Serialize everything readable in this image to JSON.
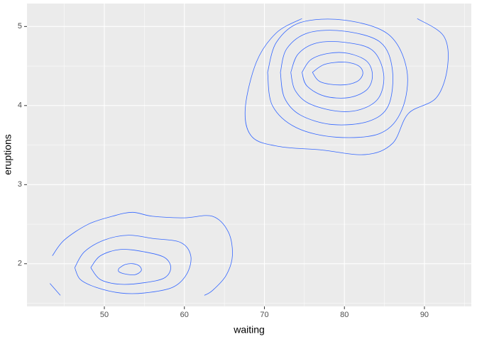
{
  "chart_data": {
    "type": "contour",
    "x_label": "waiting",
    "y_label": "eruptions",
    "color": "#3366FF",
    "xlim": [
      40.33,
      95.86
    ],
    "ylim": [
      1.46,
      5.29
    ],
    "xticks": [
      50,
      60,
      70,
      80,
      90
    ],
    "yticks": [
      2,
      3,
      4,
      5
    ],
    "grid": true,
    "series": [
      {
        "x": [
          51.8,
          52.6,
          53.6,
          54.4,
          54.6,
          53.8,
          52.6,
          51.8,
          51.8
        ],
        "y": [
          1.94,
          1.99,
          2.0,
          1.97,
          1.91,
          1.86,
          1.87,
          1.9,
          1.94
        ]
      },
      {
        "x": [
          48.3,
          49.5,
          52,
          55,
          57.5,
          58.3,
          57.5,
          55,
          52,
          49.5,
          48.3
        ],
        "y": [
          1.95,
          2.1,
          2.18,
          2.15,
          2.08,
          1.95,
          1.82,
          1.76,
          1.74,
          1.8,
          1.95
        ]
      },
      {
        "x": [
          46.3,
          47.5,
          50,
          53,
          56,
          59.5,
          60.8,
          60.3,
          58.5,
          55,
          52,
          49,
          47,
          46.3
        ],
        "y": [
          1.95,
          2.15,
          2.3,
          2.36,
          2.32,
          2.27,
          2.1,
          1.87,
          1.7,
          1.63,
          1.63,
          1.7,
          1.8,
          1.95
        ]
      },
      {
        "x": [
          43.5,
          45,
          48,
          51,
          53.5,
          56,
          60,
          63.5,
          65.5,
          66,
          65.2,
          63.5,
          62.5
        ],
        "y": [
          2.1,
          2.3,
          2.5,
          2.6,
          2.65,
          2.6,
          2.58,
          2.6,
          2.4,
          2.1,
          1.85,
          1.66,
          1.6
        ]
      },
      {
        "x": [
          43.2,
          44.5
        ],
        "y": [
          1.75,
          1.6
        ]
      },
      {
        "x": [
          76,
          77.5,
          80,
          81.8,
          82.3,
          81.5,
          79.5,
          77,
          76
        ],
        "y": [
          4.42,
          4.52,
          4.55,
          4.5,
          4.4,
          4.3,
          4.26,
          4.3,
          4.42
        ]
      },
      {
        "x": [
          74.7,
          75.8,
          78,
          80.5,
          82.8,
          83.5,
          82.8,
          80.5,
          77.5,
          75.3,
          74.7
        ],
        "y": [
          4.42,
          4.58,
          4.66,
          4.66,
          4.56,
          4.38,
          4.2,
          4.1,
          4.12,
          4.25,
          4.42
        ]
      },
      {
        "x": [
          73.3,
          74.2,
          76.5,
          80,
          83.5,
          84.9,
          84.3,
          82,
          79,
          75.5,
          73.8,
          73.3
        ],
        "y": [
          4.42,
          4.65,
          4.79,
          4.8,
          4.7,
          4.4,
          4.1,
          3.95,
          3.93,
          4.03,
          4.2,
          4.42
        ]
      },
      {
        "x": [
          72,
          72.8,
          75.5,
          80,
          84.5,
          86,
          85.5,
          83,
          78.5,
          74.5,
          72.5,
          72
        ],
        "y": [
          4.42,
          4.72,
          4.92,
          4.94,
          4.8,
          4.45,
          4.0,
          3.8,
          3.76,
          3.88,
          4.1,
          4.42
        ]
      },
      {
        "x": [
          70.4,
          71.5,
          74.5,
          80,
          85.5,
          87.8,
          87.2,
          84.5,
          79,
          74,
          71,
          70.4
        ],
        "y": [
          4.42,
          4.8,
          5.05,
          5.08,
          4.9,
          4.45,
          3.95,
          3.65,
          3.6,
          3.72,
          4.0,
          4.42
        ]
      },
      {
        "x": [
          74.7,
          71.5,
          69,
          67.6,
          68.5,
          72,
          77,
          82.6,
          86,
          88,
          91.5,
          92.9,
          92.4,
          89.1
        ],
        "y": [
          5.1,
          4.92,
          4.55,
          3.95,
          3.6,
          3.48,
          3.44,
          3.38,
          3.52,
          3.9,
          4.1,
          4.5,
          4.88,
          5.1
        ]
      }
    ]
  }
}
